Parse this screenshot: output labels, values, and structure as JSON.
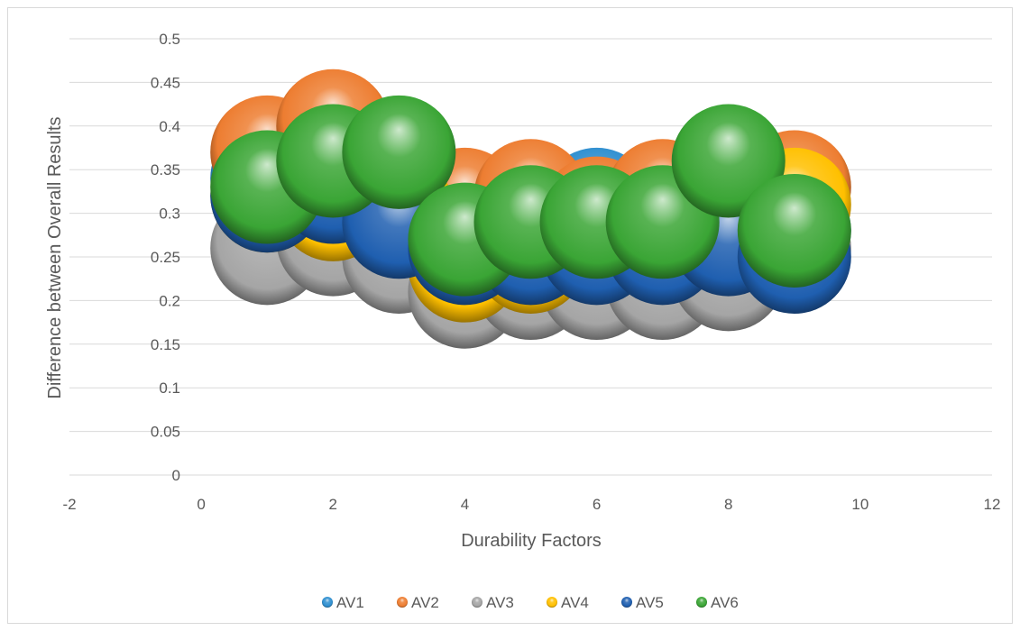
{
  "chart_data": {
    "type": "scatter",
    "subtype": "bubble",
    "title": "",
    "xlabel": "Durability Factors",
    "ylabel": "Difference between Overall Results",
    "xlim": [
      -2,
      12
    ],
    "ylim": [
      0,
      0.5
    ],
    "xticks": [
      "-2",
      "0",
      "2",
      "4",
      "6",
      "8",
      "10",
      "12"
    ],
    "yticks": [
      "0",
      "0.05",
      "0.1",
      "0.15",
      "0.2",
      "0.25",
      "0.3",
      "0.35",
      "0.4",
      "0.45",
      "0.5"
    ],
    "grid": true,
    "legend_position": "bottom",
    "series": [
      {
        "name": "AV1",
        "color": "#2f8fd0",
        "x": [
          1,
          2,
          3,
          4,
          5,
          6,
          7,
          8,
          9
        ],
        "y": [
          0.34,
          0.34,
          0.29,
          0.27,
          0.28,
          0.31,
          0.3,
          0.29,
          0.28
        ]
      },
      {
        "name": "AV2",
        "color": "#ed7d31",
        "x": [
          1,
          2,
          3,
          4,
          5,
          6,
          7,
          8,
          9
        ],
        "y": [
          0.37,
          0.4,
          0.33,
          0.31,
          0.32,
          0.3,
          0.32,
          0.35,
          0.33
        ]
      },
      {
        "name": "AV3",
        "color": "#a5a5a5",
        "x": [
          1,
          2,
          3,
          4,
          5,
          6,
          7,
          8,
          9
        ],
        "y": [
          0.26,
          0.27,
          0.25,
          0.21,
          0.22,
          0.22,
          0.22,
          0.23,
          0.26
        ]
      },
      {
        "name": "AV4",
        "color": "#ffc000",
        "x": [
          1,
          2,
          3,
          4,
          5,
          6,
          7,
          8,
          9
        ],
        "y": [
          0.32,
          0.31,
          0.3,
          0.24,
          0.25,
          0.27,
          0.27,
          0.28,
          0.31
        ]
      },
      {
        "name": "AV5",
        "color": "#1f5fb0",
        "x": [
          1,
          2,
          3,
          4,
          5,
          6,
          7,
          8,
          9
        ],
        "y": [
          0.32,
          0.33,
          0.29,
          0.26,
          0.26,
          0.26,
          0.26,
          0.27,
          0.25
        ]
      },
      {
        "name": "AV6",
        "color": "#3aa535",
        "x": [
          1,
          2,
          3,
          4,
          5,
          6,
          7,
          8,
          9
        ],
        "y": [
          0.33,
          0.36,
          0.37,
          0.27,
          0.29,
          0.29,
          0.29,
          0.36,
          0.28
        ]
      }
    ]
  }
}
